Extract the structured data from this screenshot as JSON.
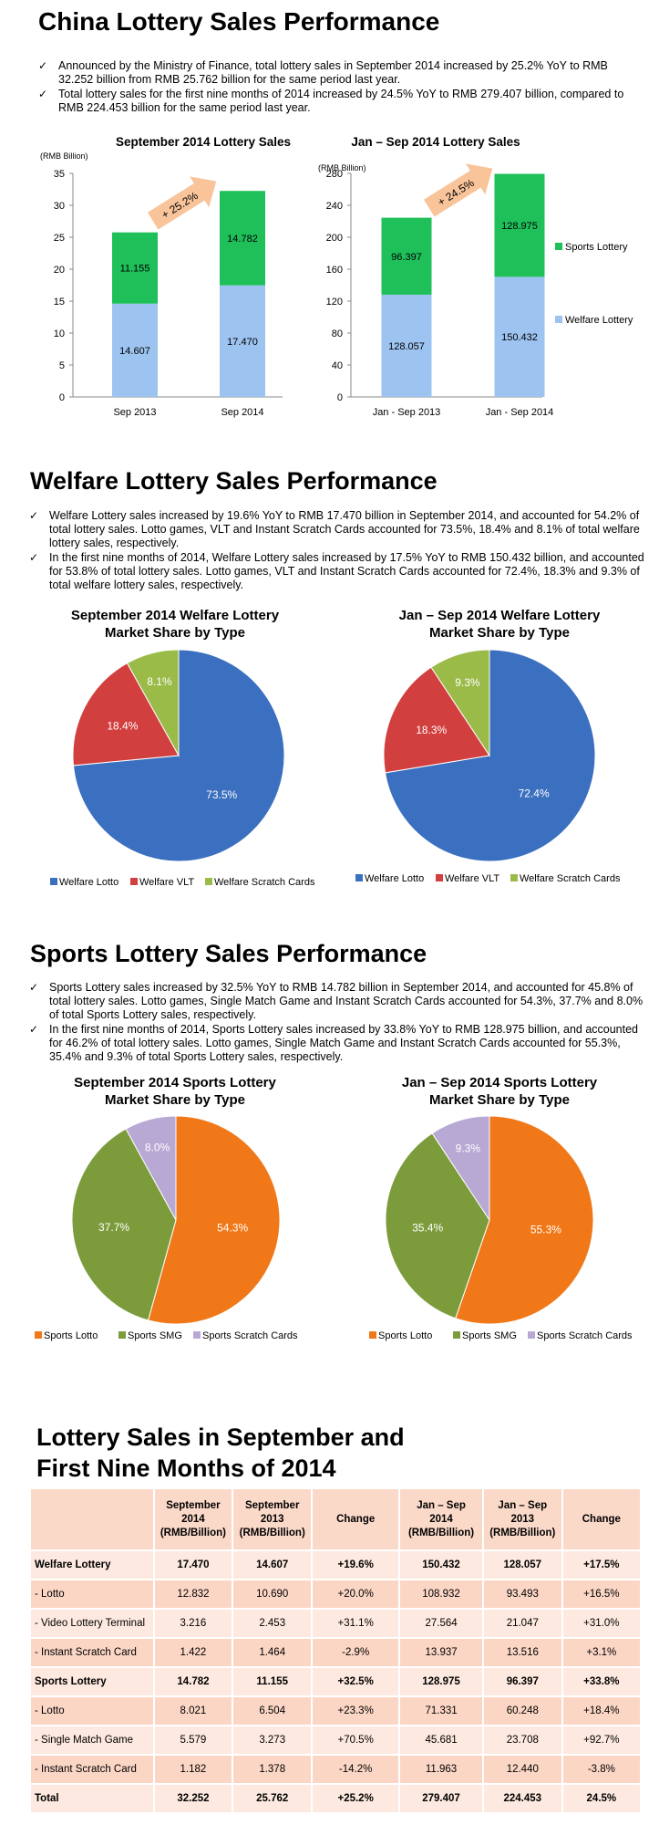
{
  "section1": {
    "title": "China Lottery Sales Performance",
    "bullets": [
      "Announced by the Ministry of Finance, total lottery sales in September 2014 increased by 25.2% YoY to RMB 32.252 billion from RMB 25.762 billion for the same period last year.",
      "Total lottery sales for the first nine months of 2014 increased by 24.5% YoY to RMB 279.407 billion, compared to RMB 224.453 billion for the same period last year."
    ]
  },
  "section2": {
    "title": "Welfare Lottery Sales Performance",
    "bullets": [
      "Welfare Lottery sales increased by 19.6% YoY to RMB 17.470 billion in September 2014, and accounted for 54.2% of total lottery sales. Lotto games, VLT and Instant Scratch Cards accounted for 73.5%, 18.4% and 8.1% of total welfare lottery sales, respectively.",
      "In the first nine months of 2014, Welfare Lottery sales increased by 17.5% YoY to RMB 150.432 billion, and accounted for 53.8% of total lottery sales. Lotto games, VLT and Instant Scratch Cards accounted for 72.4%, 18.3% and 9.3% of total welfare lottery sales, respectively."
    ]
  },
  "section3": {
    "title": "Sports Lottery Sales Performance",
    "bullets": [
      "Sports Lottery sales increased by 32.5% YoY to RMB 14.782 billion in September 2014, and accounted for 45.8% of total lottery sales. Lotto games, Single Match Game and Instant Scratch Cards accounted for 54.3%, 37.7% and 8.0% of total Sports Lottery sales, respectively.",
      "In the first nine months of 2014, Sports Lottery sales increased by 33.8% YoY to RMB 128.975 billion, and accounted for 46.2% of total lottery sales. Lotto games, Single Match Game and Instant Scratch Cards accounted for 55.3%, 35.4% and 9.3% of total Sports Lottery sales, respectively."
    ]
  },
  "section4": {
    "title_line1": "Lottery Sales in September and",
    "title_line2": "First Nine Months of 2014"
  },
  "colors": {
    "welfare_bar": "#9dc3f0",
    "sports_bar": "#1fbf5a",
    "arrow": "#f9c49a",
    "pie_blue": "#3b6fbf",
    "pie_red": "#d23f3f",
    "pie_lime": "#9bbb49",
    "pie_orange": "#f07818",
    "pie_olive": "#7c9c3c",
    "pie_lavender": "#b8a8d4"
  },
  "chart_data": [
    {
      "type": "bar",
      "stacked": true,
      "title": "September 2014 Lottery Sales",
      "ylabel": "(RMB Billion)",
      "categories": [
        "Sep 2013",
        "Sep 2014"
      ],
      "ylim": [
        0,
        35
      ],
      "yticks": [
        0,
        5,
        10,
        15,
        20,
        25,
        30,
        35
      ],
      "series": [
        {
          "name": "Welfare Lottery",
          "values": [
            14.607,
            17.47
          ],
          "labels": [
            "14.607",
            "17.470"
          ]
        },
        {
          "name": "Sports Lottery",
          "values": [
            11.155,
            14.782
          ],
          "labels": [
            "11.155",
            "14.782"
          ]
        }
      ],
      "annotation": "+ 25.2%"
    },
    {
      "type": "bar",
      "stacked": true,
      "title": "Jan – Sep 2014 Lottery Sales",
      "ylabel": "(RMB Billion)",
      "categories": [
        "Jan - Sep 2013",
        "Jan - Sep 2014"
      ],
      "ylim": [
        0,
        280
      ],
      "yticks": [
        0,
        40,
        80,
        120,
        160,
        200,
        240,
        280
      ],
      "series": [
        {
          "name": "Welfare Lottery",
          "values": [
            128.057,
            150.432
          ],
          "labels": [
            "128.057",
            "150.432"
          ]
        },
        {
          "name": "Sports Lottery",
          "values": [
            96.397,
            128.975
          ],
          "labels": [
            "96.397",
            "128.975"
          ]
        }
      ],
      "annotation": "+ 24.5%",
      "legend": [
        "Sports Lottery",
        "Welfare Lottery"
      ],
      "legend_position": "right"
    },
    {
      "type": "pie",
      "title_line1": "September 2014 Welfare Lottery",
      "title_line2": "Market Share by Type",
      "slices": [
        {
          "name": "Welfare Lotto",
          "value": 73.5,
          "label": "73.5%"
        },
        {
          "name": "Welfare VLT",
          "value": 18.4,
          "label": "18.4%"
        },
        {
          "name": "Welfare Scratch Cards",
          "value": 8.1,
          "label": "8.1%"
        }
      ],
      "legend_position": "bottom"
    },
    {
      "type": "pie",
      "title_line1": "Jan – Sep 2014 Welfare Lottery",
      "title_line2": "Market Share by Type",
      "slices": [
        {
          "name": "Welfare Lotto",
          "value": 72.4,
          "label": "72.4%"
        },
        {
          "name": "Welfare VLT",
          "value": 18.3,
          "label": "18.3%"
        },
        {
          "name": "Welfare Scratch Cards",
          "value": 9.3,
          "label": "9.3%"
        }
      ],
      "legend_position": "bottom"
    },
    {
      "type": "pie",
      "title_line1": "September 2014 Sports Lottery",
      "title_line2": "Market Share by Type",
      "slices": [
        {
          "name": "Sports Lotto",
          "value": 54.3,
          "label": "54.3%"
        },
        {
          "name": "Sports SMG",
          "value": 37.7,
          "label": "37.7%"
        },
        {
          "name": "Sports Scratch Cards",
          "value": 8.0,
          "label": "8.0%"
        }
      ],
      "legend_position": "bottom"
    },
    {
      "type": "pie",
      "title_line1": "Jan – Sep 2014 Sports Lottery",
      "title_line2": "Market Share by Type",
      "slices": [
        {
          "name": "Sports Lotto",
          "value": 55.3,
          "label": "55.3%"
        },
        {
          "name": "Sports SMG",
          "value": 35.4,
          "label": "35.4%"
        },
        {
          "name": "Sports Scratch Cards",
          "value": 9.3,
          "label": "9.3%"
        }
      ],
      "legend_position": "bottom"
    },
    {
      "type": "table",
      "headers": [
        "",
        "September 2014 (RMB/Billion)",
        "September 2013 (RMB/Billion)",
        "Change",
        "Jan – Sep 2014 (RMB/Billion)",
        "Jan – Sep 2013 (RMB/Billion)",
        "Change"
      ],
      "header_lines": [
        [
          ""
        ],
        [
          "September",
          "2014",
          "(RMB/Billion)"
        ],
        [
          "September",
          "2013",
          "(RMB/Billion)"
        ],
        [
          "Change"
        ],
        [
          "Jan – Sep",
          "2014",
          "(RMB/Billion)"
        ],
        [
          "Jan – Sep",
          "2013",
          "(RMB/Billion)"
        ],
        [
          "Change"
        ]
      ],
      "rows": [
        {
          "bold": true,
          "cells": [
            "Welfare Lottery",
            "17.470",
            "14.607",
            "+19.6%",
            "150.432",
            "128.057",
            "+17.5%"
          ]
        },
        {
          "bold": false,
          "cells": [
            "- Lotto",
            "12.832",
            "10.690",
            "+20.0%",
            "108.932",
            "93.493",
            "+16.5%"
          ]
        },
        {
          "bold": false,
          "cells": [
            "- Video Lottery Terminal",
            "3.216",
            "2.453",
            "+31.1%",
            "27.564",
            "21.047",
            "+31.0%"
          ]
        },
        {
          "bold": false,
          "cells": [
            "- Instant Scratch Card",
            "1.422",
            "1.464",
            "-2.9%",
            "13.937",
            "13.516",
            "+3.1%"
          ]
        },
        {
          "bold": true,
          "cells": [
            "Sports Lottery",
            "14.782",
            "11.155",
            "+32.5%",
            "128.975",
            "96.397",
            "+33.8%"
          ]
        },
        {
          "bold": false,
          "cells": [
            "- Lotto",
            "8.021",
            "6.504",
            "+23.3%",
            "71.331",
            "60.248",
            "+18.4%"
          ]
        },
        {
          "bold": false,
          "cells": [
            "- Single Match Game",
            "5.579",
            "3.273",
            "+70.5%",
            "45.681",
            "23.708",
            "+92.7%"
          ]
        },
        {
          "bold": false,
          "cells": [
            "- Instant Scratch Card",
            "1.182",
            "1.378",
            "-14.2%",
            "11.963",
            "12.440",
            "-3.8%"
          ]
        },
        {
          "bold": true,
          "cells": [
            "Total",
            "32.252",
            "25.762",
            "+25.2%",
            "279.407",
            "224.453",
            "24.5%"
          ]
        }
      ]
    }
  ]
}
